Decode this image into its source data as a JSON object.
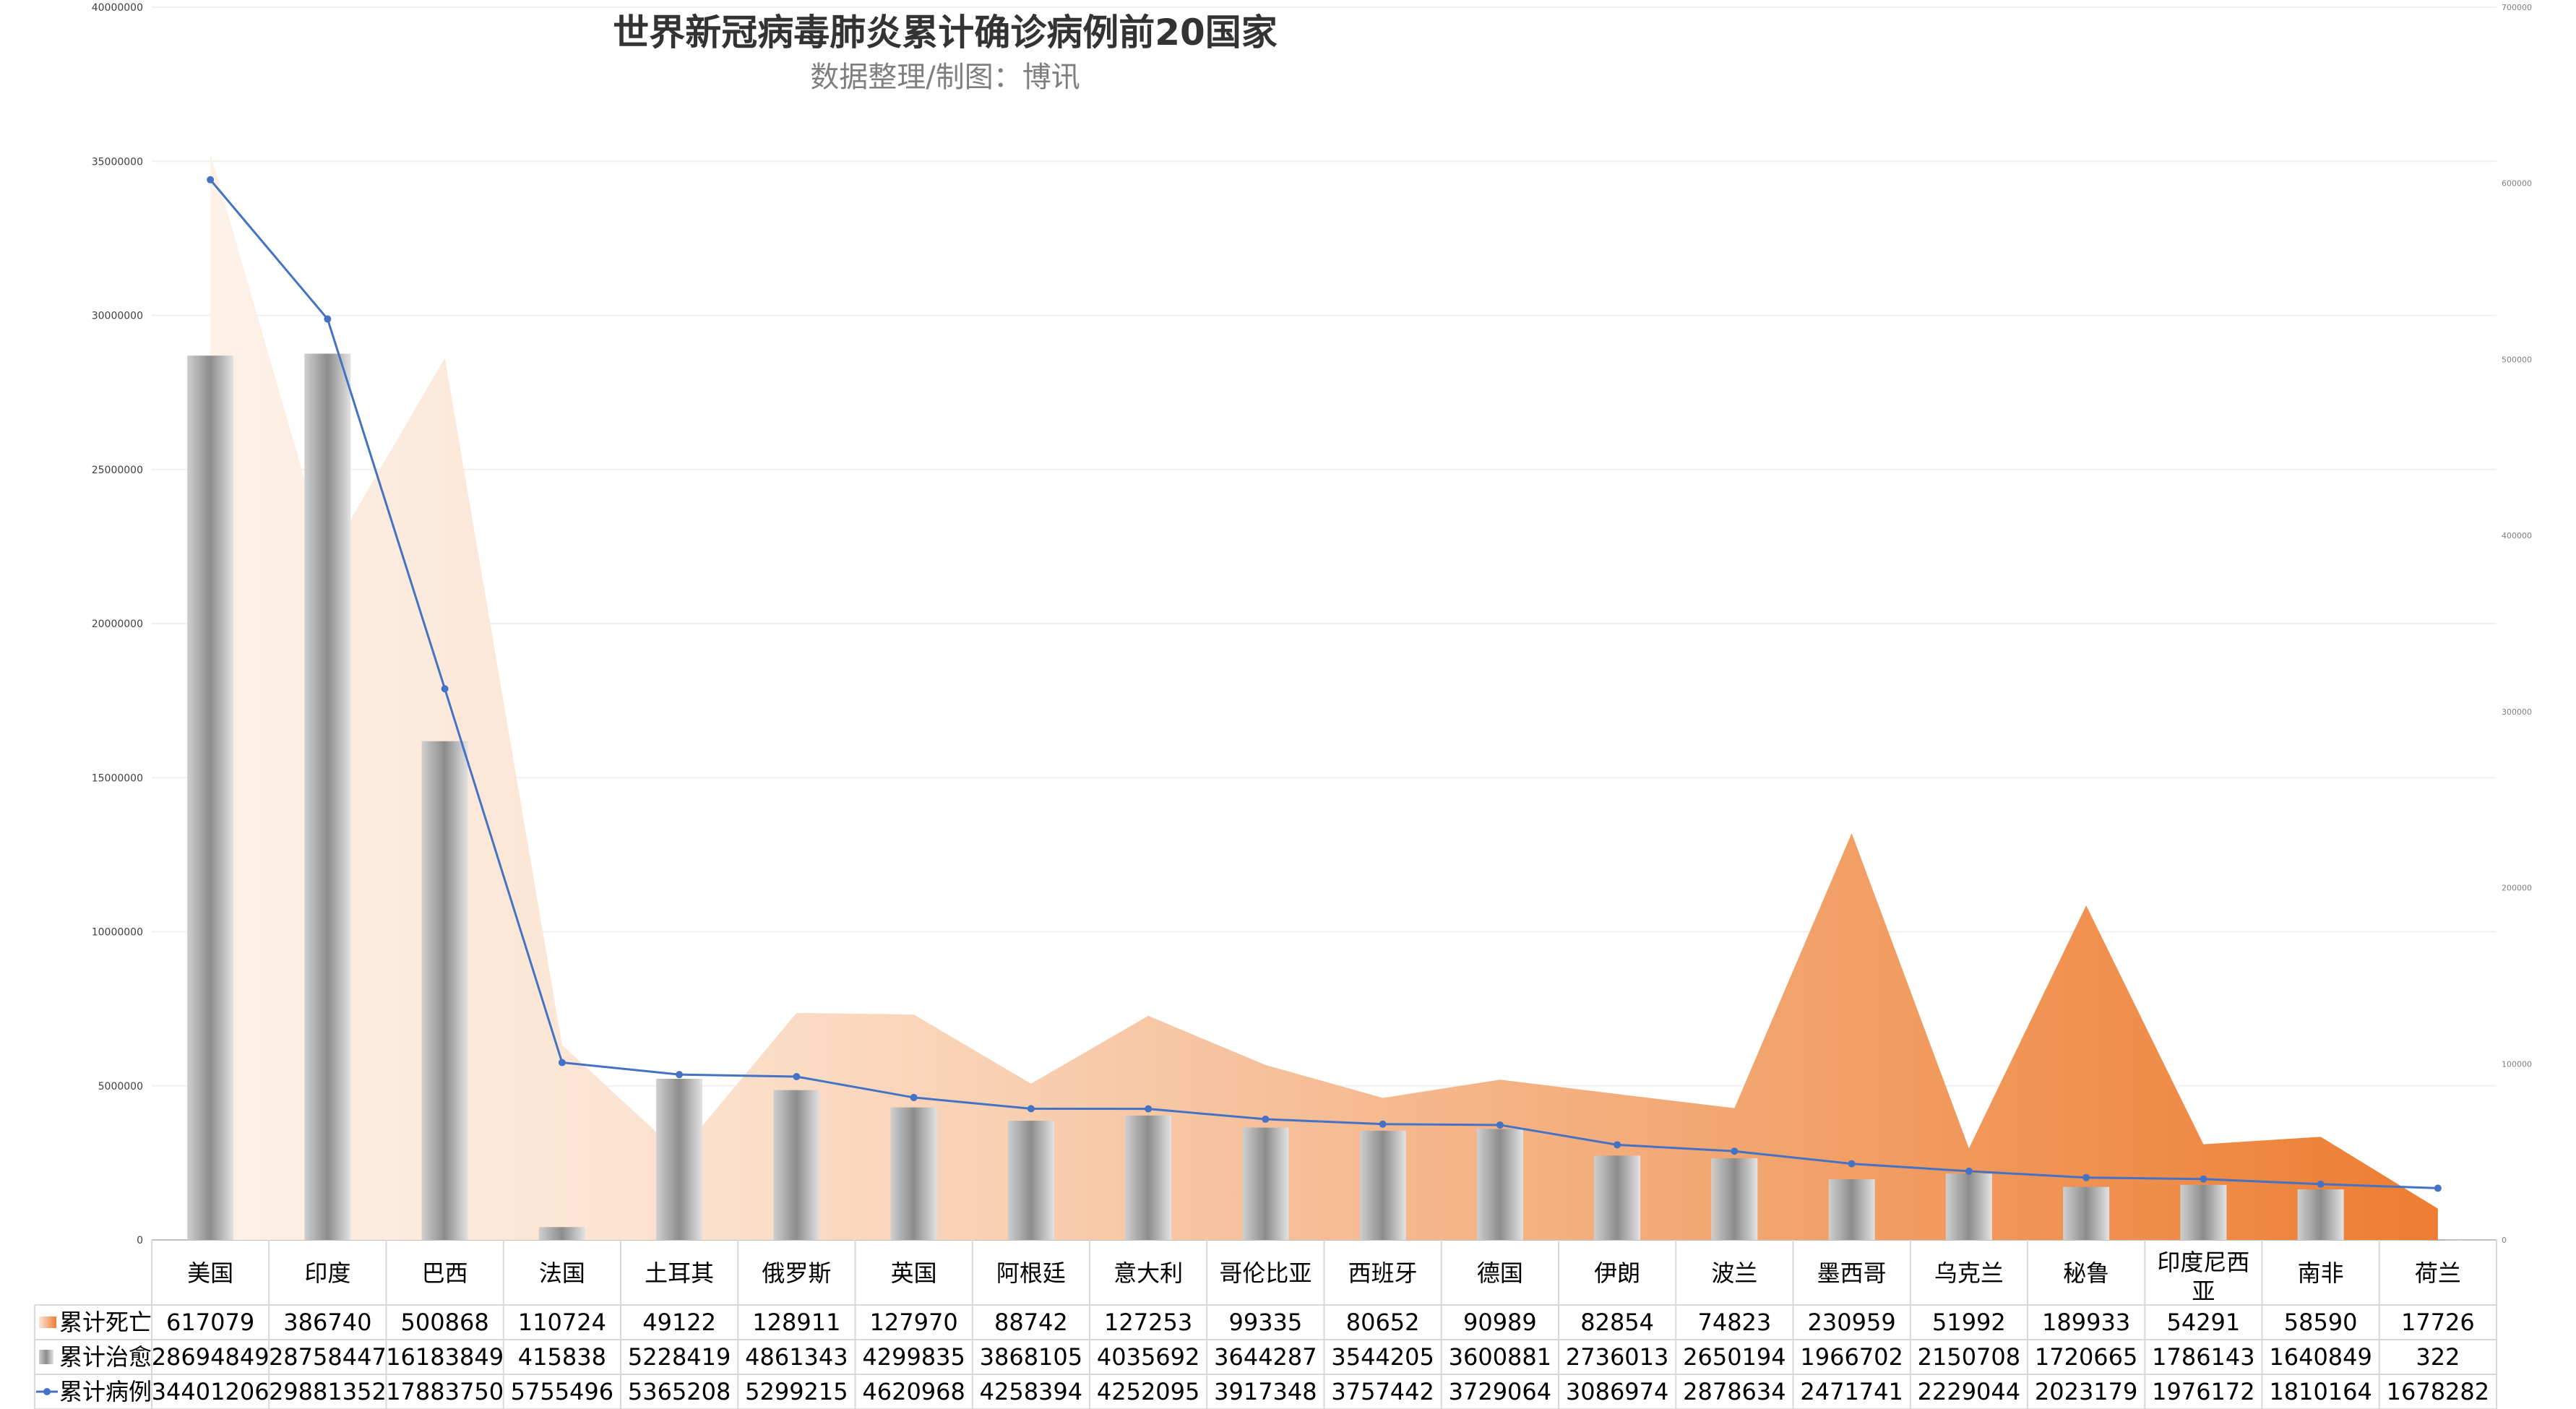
{
  "chart_data": {
    "type": "bar",
    "title": "世界新冠病毒肺炎累计确诊病例前20国家",
    "subtitle": "数据整理/制图：博讯",
    "categories": [
      "美国",
      "印度",
      "巴西",
      "法国",
      "土耳其",
      "俄罗斯",
      "英国",
      "阿根廷",
      "意大利",
      "哥伦比亚",
      "西班牙",
      "德国",
      "伊朗",
      "波兰",
      "墨西哥",
      "乌克兰",
      "秘鲁",
      "印度尼西亚",
      "南非",
      "荷兰"
    ],
    "left_axis": {
      "min": 0,
      "max": 40000000,
      "ticks": [
        "0",
        "5000000",
        "10000000",
        "15000000",
        "20000000",
        "25000000",
        "30000000",
        "35000000",
        "40000000"
      ]
    },
    "right_axis": {
      "min": 0,
      "max": 700000,
      "ticks": [
        "0",
        "100000",
        "200000",
        "300000",
        "400000",
        "500000",
        "600000",
        "700000"
      ]
    },
    "series": [
      {
        "name": "累计死亡",
        "kind": "area",
        "axis": "right",
        "color_start": "#fbe5d6",
        "color_end": "#ed7d31",
        "values": [
          617079,
          386740,
          500868,
          110724,
          49122,
          128911,
          127970,
          88742,
          127253,
          99335,
          80652,
          90989,
          82854,
          74823,
          230959,
          51992,
          189933,
          54291,
          58590,
          17726
        ]
      },
      {
        "name": "累计治愈",
        "kind": "bar",
        "axis": "left",
        "color": "#a6a6a6",
        "values": [
          28694849,
          28758447,
          16183849,
          415838,
          5228419,
          4861343,
          4299835,
          3868105,
          4035692,
          3644287,
          3544205,
          3600881,
          2736013,
          2650194,
          1966702,
          2150708,
          1720665,
          1786143,
          1640849,
          322
        ]
      },
      {
        "name": "累计病例",
        "kind": "line",
        "axis": "left",
        "color": "#4472c4",
        "values": [
          34401206,
          29881352,
          17883750,
          5755496,
          5365208,
          5299215,
          4620968,
          4258394,
          4252095,
          3917348,
          3757442,
          3729064,
          3086974,
          2878634,
          2471741,
          2229044,
          2023179,
          1976172,
          1810164,
          1678282
        ]
      }
    ],
    "grid": true,
    "legend": "data-table"
  }
}
